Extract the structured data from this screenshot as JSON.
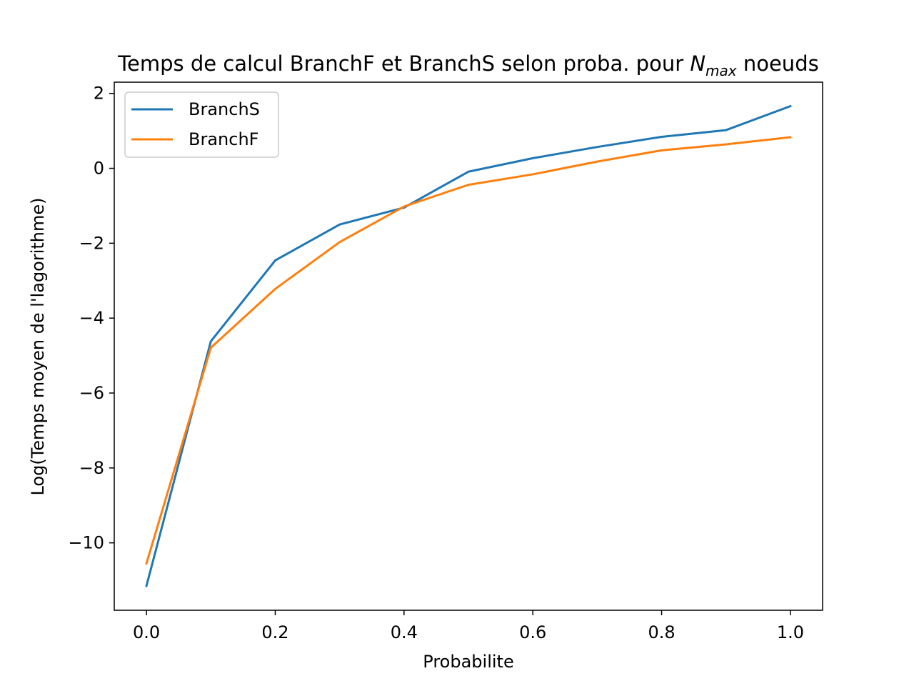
{
  "chart_data": {
    "type": "line",
    "title": {
      "prefix": "Temps de calcul BranchF et BranchS selon proba. pour ",
      "math_main": "N",
      "math_sub": "max",
      "suffix": " noeuds"
    },
    "xlabel": "Probabilite",
    "ylabel": "Log(Temps moyen de l'lagorithme)",
    "xlim": [
      -0.05,
      1.05
    ],
    "ylim": [
      -11.8,
      2.3
    ],
    "xticks": [
      0.0,
      0.2,
      0.4,
      0.6,
      0.8,
      1.0
    ],
    "xtick_labels": [
      "0.0",
      "0.2",
      "0.4",
      "0.6",
      "0.8",
      "1.0"
    ],
    "yticks": [
      2,
      0,
      -2,
      -4,
      -6,
      -8,
      -10
    ],
    "ytick_labels": [
      "2",
      "0",
      "−2",
      "−4",
      "−6",
      "−8",
      "−10"
    ],
    "grid": false,
    "legend_position": "top-left",
    "x": [
      0.0,
      0.1,
      0.2,
      0.3,
      0.4,
      0.5,
      0.6,
      0.7,
      0.8,
      0.9,
      1.0
    ],
    "series": [
      {
        "name": "BranchS",
        "color": "#1f77b4",
        "values": [
          -11.15,
          -4.62,
          -2.46,
          -1.5,
          -1.05,
          -0.09,
          0.27,
          0.57,
          0.84,
          1.02,
          1.66
        ]
      },
      {
        "name": "BranchF",
        "color": "#ff7f0e",
        "values": [
          -10.55,
          -4.79,
          -3.22,
          -1.97,
          -1.02,
          -0.44,
          -0.16,
          0.18,
          0.48,
          0.64,
          0.83
        ]
      }
    ]
  }
}
